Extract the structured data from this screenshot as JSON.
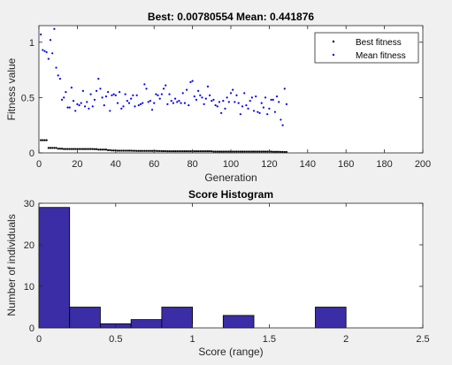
{
  "figure": {
    "background": "#f0f0f0",
    "plot_background": "#ffffff",
    "axis_color": "#262626"
  },
  "chart_data": [
    {
      "type": "scatter",
      "title": "Best: 0.00780554 Mean: 0.441876",
      "xlabel": "Generation",
      "ylabel": "Fitness value",
      "xlim": [
        0,
        200
      ],
      "ylim": [
        0,
        1.15
      ],
      "xticks": [
        0,
        20,
        40,
        60,
        80,
        100,
        120,
        140,
        160,
        180,
        200
      ],
      "yticks": [
        0,
        0.5,
        1
      ],
      "ytick_labels": [
        "0",
        "0.5",
        "1"
      ],
      "grid": false,
      "legend": {
        "position": "top-right",
        "entries": [
          "Best fitness",
          "Mean fitness"
        ]
      },
      "series": [
        {
          "name": "Best fitness",
          "color": "#000000",
          "marker": "dot",
          "generations": [
            1,
            129
          ],
          "values": [
            0.115,
            0.115,
            0.115,
            0.115,
            0.045,
            0.045,
            0.045,
            0.045,
            0.045,
            0.038,
            0.038,
            0.038,
            0.035,
            0.035,
            0.035,
            0.035,
            0.035,
            0.035,
            0.035,
            0.035,
            0.035,
            0.035,
            0.035,
            0.035,
            0.035,
            0.035,
            0.035,
            0.035,
            0.034,
            0.034,
            0.03,
            0.03,
            0.03,
            0.03,
            0.03,
            0.025,
            0.025,
            0.022,
            0.022,
            0.022,
            0.02,
            0.02,
            0.02,
            0.02,
            0.02,
            0.02,
            0.02,
            0.02,
            0.019,
            0.019,
            0.018,
            0.018,
            0.018,
            0.018,
            0.018,
            0.018,
            0.018,
            0.018,
            0.018,
            0.018,
            0.018,
            0.017,
            0.017,
            0.016,
            0.016,
            0.016,
            0.015,
            0.015,
            0.015,
            0.015,
            0.015,
            0.015,
            0.015,
            0.015,
            0.015,
            0.015,
            0.015,
            0.015,
            0.015,
            0.015,
            0.015,
            0.015,
            0.015,
            0.015,
            0.015,
            0.015,
            0.015,
            0.015,
            0.015,
            0.015,
            0.012,
            0.012,
            0.012,
            0.012,
            0.012,
            0.012,
            0.012,
            0.012,
            0.012,
            0.012,
            0.012,
            0.012,
            0.012,
            0.012,
            0.012,
            0.012,
            0.012,
            0.012,
            0.012,
            0.012,
            0.012,
            0.012,
            0.012,
            0.012,
            0.012,
            0.012,
            0.012,
            0.012,
            0.012,
            0.012,
            0.012,
            0.01,
            0.01,
            0.01,
            0.01,
            0.009,
            0.009,
            0.008,
            0.008
          ]
        },
        {
          "name": "Mean fitness",
          "color": "#0000ff",
          "marker": "dot",
          "generations": [
            1,
            129
          ],
          "values": [
            1.07,
            0.93,
            0.92,
            0.91,
            0.85,
            1.02,
            0.9,
            1.12,
            0.77,
            0.7,
            0.67,
            0.48,
            0.5,
            0.55,
            0.41,
            0.41,
            0.59,
            0.47,
            0.38,
            0.44,
            0.43,
            0.45,
            0.56,
            0.42,
            0.46,
            0.4,
            0.53,
            0.42,
            0.48,
            0.56,
            0.67,
            0.58,
            0.5,
            0.43,
            0.51,
            0.55,
            0.38,
            0.52,
            0.53,
            0.52,
            0.45,
            0.55,
            0.4,
            0.42,
            0.53,
            0.47,
            0.45,
            0.49,
            0.52,
            0.42,
            0.52,
            0.43,
            0.44,
            0.45,
            0.62,
            0.58,
            0.46,
            0.47,
            0.39,
            0.45,
            0.53,
            0.52,
            0.49,
            0.53,
            0.58,
            0.61,
            0.44,
            0.53,
            0.47,
            0.45,
            0.49,
            0.46,
            0.47,
            0.45,
            0.54,
            0.45,
            0.57,
            0.43,
            0.64,
            0.65,
            0.51,
            0.48,
            0.56,
            0.52,
            0.5,
            0.44,
            0.49,
            0.6,
            0.52,
            0.47,
            0.48,
            0.43,
            0.42,
            0.46,
            0.36,
            0.47,
            0.4,
            0.5,
            0.46,
            0.54,
            0.57,
            0.46,
            0.52,
            0.45,
            0.35,
            0.42,
            0.54,
            0.43,
            0.4,
            0.47,
            0.5,
            0.38,
            0.51,
            0.37,
            0.36,
            0.45,
            0.41,
            0.5,
            0.35,
            0.4,
            0.48,
            0.48,
            0.37,
            0.51,
            0.46,
            0.3,
            0.25,
            0.58,
            0.44
          ]
        }
      ]
    },
    {
      "type": "bar",
      "title": "Score Histogram",
      "xlabel": "Score (range)",
      "ylabel": "Number of individuals",
      "xlim": [
        0,
        2.5
      ],
      "ylim": [
        0,
        30
      ],
      "xticks": [
        0,
        0.5,
        1,
        1.5,
        2,
        2.5
      ],
      "xtick_labels": [
        "0",
        "0.5",
        "1",
        "1.5",
        "2",
        "2.5"
      ],
      "yticks": [
        0,
        10,
        20,
        30
      ],
      "grid": false,
      "bar_color": "#3a2da6",
      "bins": [
        {
          "from": 0.0,
          "to": 0.2,
          "count": 29
        },
        {
          "from": 0.2,
          "to": 0.4,
          "count": 5
        },
        {
          "from": 0.4,
          "to": 0.6,
          "count": 1
        },
        {
          "from": 0.6,
          "to": 0.8,
          "count": 2
        },
        {
          "from": 0.8,
          "to": 1.0,
          "count": 5
        },
        {
          "from": 1.0,
          "to": 1.2,
          "count": 0
        },
        {
          "from": 1.2,
          "to": 1.4,
          "count": 3
        },
        {
          "from": 1.4,
          "to": 1.6,
          "count": 0
        },
        {
          "from": 1.6,
          "to": 1.8,
          "count": 0
        },
        {
          "from": 1.8,
          "to": 2.0,
          "count": 5
        }
      ]
    }
  ]
}
